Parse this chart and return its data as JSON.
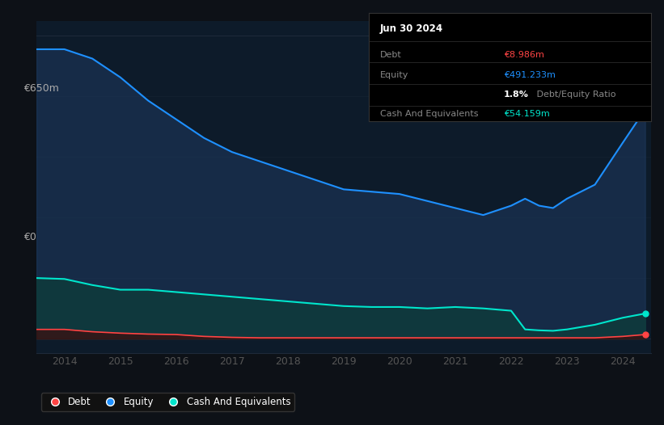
{
  "bg_color": "#0d1117",
  "plot_bg_color": "#0d1b2a",
  "ylabel_top": "€650m",
  "ylabel_zero": "€0",
  "x_ticks": [
    2014,
    2015,
    2016,
    2017,
    2018,
    2019,
    2020,
    2021,
    2022,
    2023,
    2024
  ],
  "equity_color": "#1e90ff",
  "equity_fill": "#1e3a5f",
  "cash_color": "#00e5cc",
  "cash_fill": "#0d3d3a",
  "debt_color": "#ff4444",
  "debt_fill": "#3a1010",
  "grid_color": "#1e2a3a",
  "legend_bg": "#111111",
  "legend_border": "#333333",
  "info_box_bg": "#000000",
  "info_box_border": "#333333",
  "info_date": "Jun 30 2024",
  "info_debt_label": "Debt",
  "info_debt_value": "€8.986m",
  "info_equity_label": "Equity",
  "info_equity_value": "€491.233m",
  "info_ratio_pct": "1.8%",
  "info_ratio_text": " Debt/Equity Ratio",
  "info_cash_label": "Cash And Equivalents",
  "info_cash_value": "€54.159m",
  "years": [
    2013.5,
    2014.0,
    2014.5,
    2015.0,
    2015.5,
    2016.0,
    2016.5,
    2017.0,
    2017.5,
    2018.0,
    2018.5,
    2019.0,
    2019.5,
    2020.0,
    2020.5,
    2021.0,
    2021.5,
    2022.0,
    2022.25,
    2022.5,
    2022.75,
    2023.0,
    2023.5,
    2024.0,
    2024.4
  ],
  "equity": [
    620,
    620,
    600,
    560,
    510,
    470,
    430,
    400,
    380,
    360,
    340,
    320,
    315,
    310,
    295,
    280,
    265,
    285,
    300,
    285,
    280,
    300,
    330,
    420,
    491
  ],
  "cash": [
    130,
    128,
    115,
    105,
    105,
    100,
    95,
    90,
    85,
    80,
    75,
    70,
    68,
    68,
    65,
    68,
    65,
    60,
    20,
    18,
    17,
    20,
    30,
    45,
    54
  ],
  "debt": [
    20,
    20,
    15,
    12,
    10,
    9,
    5,
    3,
    2,
    2,
    2,
    2,
    2,
    2,
    2,
    2,
    2,
    2,
    2,
    2,
    2,
    2,
    2,
    5,
    9
  ]
}
